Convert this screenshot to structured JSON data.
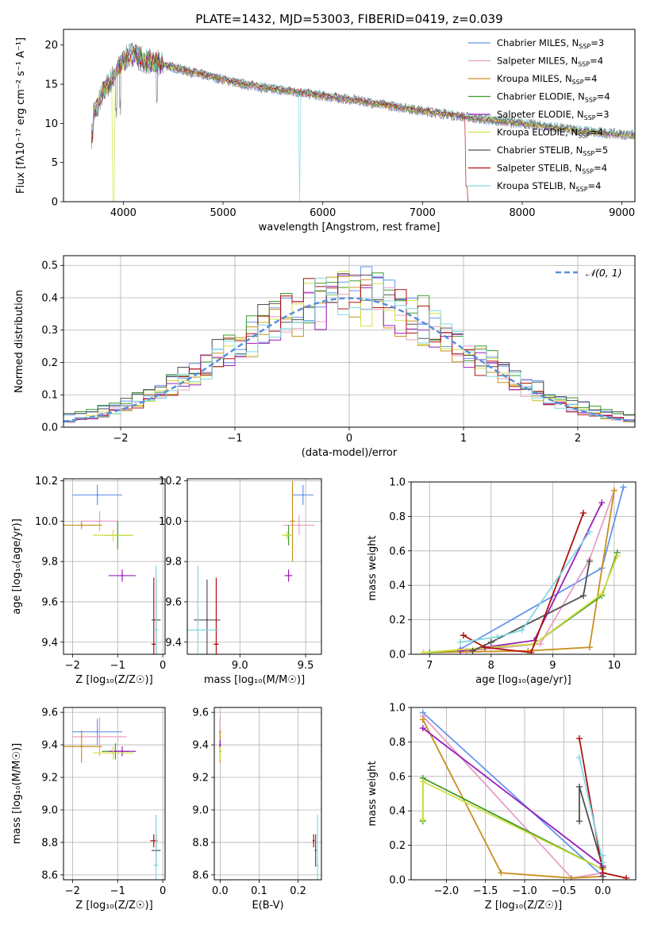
{
  "title": "PLATE=1432, MJD=53003, FIBERID=0419, z=0.039",
  "fits": [
    {
      "name": "Chabrier MILES",
      "nssp": "3",
      "color": "#6495ed"
    },
    {
      "name": "Salpeter MILES",
      "nssp": "4",
      "color": "#e8a0c8"
    },
    {
      "name": "Kroupa MILES",
      "nssp": "4",
      "color": "#c8901e"
    },
    {
      "name": "Chabrier ELODIE",
      "nssp": "4",
      "color": "#3f9a2d"
    },
    {
      "name": "Salpeter ELODIE",
      "nssp": "3",
      "color": "#9a1fb8"
    },
    {
      "name": "Kroupa ELODIE",
      "nssp": "4",
      "color": "#d4e040"
    },
    {
      "name": "Chabrier STELIB",
      "nssp": "5",
      "color": "#505050"
    },
    {
      "name": "Salpeter STELIB",
      "nssp": "4",
      "color": "#b01010"
    },
    {
      "name": "Kroupa STELIB",
      "nssp": "4",
      "color": "#80d8e0"
    }
  ],
  "chart_data": [
    {
      "id": "spectrum",
      "type": "line",
      "title": "PLATE=1432, MJD=53003, FIBERID=0419, z=0.039",
      "xlabel": "wavelength [Angstrom, rest frame]",
      "ylabel": "Flux [fλ10⁻¹⁷ erg cm⁻² s⁻¹ A⁻¹]",
      "xlim": [
        3400,
        9130
      ],
      "ylim": [
        0,
        22
      ],
      "xticks": [
        4000,
        5000,
        6000,
        7000,
        8000,
        9000
      ],
      "yticks": [
        0,
        5,
        10,
        15,
        20
      ],
      "grid": false,
      "legend": "top-right",
      "data": {
        "x": [
          3700,
          3800,
          3900,
          4000,
          4100,
          4200,
          4400,
          4600,
          4800,
          5000,
          5200,
          5500,
          5800,
          6000,
          6300,
          6600,
          7000,
          7500,
          8000,
          8500,
          8800,
          9100
        ],
        "y": [
          11,
          14,
          16,
          18,
          19,
          18,
          17.5,
          16.8,
          16.2,
          15.6,
          15.0,
          14.4,
          13.9,
          13.5,
          13.0,
          12.4,
          11.6,
          10.7,
          10.0,
          9.2,
          8.8,
          8.5
        ]
      }
    },
    {
      "id": "residuals",
      "type": "line",
      "xlabel": "(data-model)/error",
      "ylabel": "Normed distribution",
      "xlim": [
        -2.5,
        2.5
      ],
      "ylim": [
        0,
        0.53
      ],
      "xticks": [
        -2,
        -1,
        0,
        1,
        2
      ],
      "yticks": [
        0.0,
        0.1,
        0.2,
        0.3,
        0.4,
        0.5
      ],
      "grid": true,
      "legend": "top-right",
      "reference": {
        "name": "𝒩(0, 1)",
        "mu": 0,
        "sigma": 1,
        "color": "#5590dd"
      }
    },
    {
      "id": "age-Z",
      "type": "scatter",
      "xlabel": "Z [log₁₀(Z/Z☉)]",
      "ylabel": "age  [log₁₀(age/yr)]",
      "xlim": [
        -2.2,
        0.05
      ],
      "ylim": [
        9.34,
        10.21
      ],
      "xticks": [
        -2,
        -1,
        0
      ],
      "yticks": [
        9.4,
        9.6,
        9.8,
        10.0,
        10.2
      ],
      "grid": true,
      "points": [
        {
          "fit": 0,
          "x": -1.45,
          "y": 10.13,
          "xerr": 0.55,
          "yerr": 0.05
        },
        {
          "fit": 1,
          "x": -1.4,
          "y": 10.0,
          "xerr": 0.4,
          "yerr": 0.05
        },
        {
          "fit": 2,
          "x": -1.8,
          "y": 9.98,
          "xerr": 0.45,
          "yerr": 0.02
        },
        {
          "fit": 3,
          "x": -1.0,
          "y": 9.93,
          "xerr": 0.3,
          "yerr": 0.07
        },
        {
          "fit": 4,
          "x": -0.9,
          "y": 9.73,
          "xerr": 0.3,
          "yerr": 0.03
        },
        {
          "fit": 5,
          "x": -1.1,
          "y": 9.93,
          "xerr": 0.45,
          "yerr": 0.03
        },
        {
          "fit": 6,
          "x": -0.15,
          "y": 9.51,
          "xerr": 0.1,
          "yerr": 0.2
        },
        {
          "fit": 7,
          "x": -0.2,
          "y": 9.39,
          "xerr": 0.05,
          "yerr": 0.33
        },
        {
          "fit": 8,
          "x": -0.15,
          "y": 9.46,
          "xerr": 0.05,
          "yerr": 0.32
        }
      ]
    },
    {
      "id": "age-mass",
      "type": "scatter",
      "xlabel": "mass [log₁₀(M/M☉)]",
      "ylabel": "",
      "xlim": [
        8.6,
        9.62
      ],
      "ylim": [
        9.34,
        10.21
      ],
      "xticks": [
        9.0,
        9.5
      ],
      "yticks": [
        9.4,
        9.6,
        9.8,
        10.0,
        10.2
      ],
      "grid": true,
      "points": [
        {
          "fit": 0,
          "x": 9.48,
          "y": 10.13,
          "xerr": 0.08,
          "yerr": 0.05
        },
        {
          "fit": 1,
          "x": 9.45,
          "y": 9.98,
          "xerr": 0.12,
          "yerr": 0.05
        },
        {
          "fit": 2,
          "x": 9.4,
          "y": 10.0,
          "xerr": 0.02,
          "yerr": 0.2
        },
        {
          "fit": 3,
          "x": 9.37,
          "y": 9.93,
          "xerr": 0.03,
          "yerr": 0.05
        },
        {
          "fit": 4,
          "x": 9.37,
          "y": 9.73,
          "xerr": 0.03,
          "yerr": 0.03
        },
        {
          "fit": 5,
          "x": 9.36,
          "y": 9.93,
          "xerr": 0.04,
          "yerr": 0.02
        },
        {
          "fit": 6,
          "x": 8.75,
          "y": 9.51,
          "xerr": 0.1,
          "yerr": 0.2
        },
        {
          "fit": 7,
          "x": 8.82,
          "y": 9.39,
          "xerr": 0.02,
          "yerr": 0.33
        },
        {
          "fit": 8,
          "x": 8.68,
          "y": 9.46,
          "xerr": 0.16,
          "yerr": 0.32
        }
      ]
    },
    {
      "id": "massweight-age",
      "type": "line",
      "xlabel": "age  [log₁₀(age/yr)]",
      "ylabel": "mass weight",
      "xlim": [
        6.7,
        10.35
      ],
      "ylim": [
        0,
        1
      ],
      "xticks": [
        7,
        8,
        9,
        10
      ],
      "yticks": [
        0.0,
        0.2,
        0.4,
        0.6,
        0.8,
        1.0
      ],
      "grid": true,
      "series": [
        {
          "fit": 0,
          "x": [
            7.5,
            9.8,
            10.15
          ],
          "y": [
            0.03,
            0.5,
            0.97
          ]
        },
        {
          "fit": 1,
          "x": [
            7.6,
            8.8,
            9.6,
            10.0
          ],
          "y": [
            0.02,
            0.06,
            0.55,
            0.95
          ]
        },
        {
          "fit": 2,
          "x": [
            6.9,
            8.6,
            9.6,
            10.0
          ],
          "y": [
            0.01,
            0.02,
            0.04,
            0.95
          ]
        },
        {
          "fit": 3,
          "x": [
            7.0,
            8.7,
            9.8,
            10.05
          ],
          "y": [
            0.01,
            0.06,
            0.34,
            0.59
          ]
        },
        {
          "fit": 4,
          "x": [
            7.5,
            8.7,
            9.8
          ],
          "y": [
            0.02,
            0.08,
            0.88
          ]
        },
        {
          "fit": 5,
          "x": [
            6.9,
            8.7,
            9.8,
            10.05
          ],
          "y": [
            0.01,
            0.06,
            0.35,
            0.57
          ]
        },
        {
          "fit": 6,
          "x": [
            7.7,
            8.0,
            9.5,
            9.6
          ],
          "y": [
            0.02,
            0.07,
            0.34,
            0.54
          ]
        },
        {
          "fit": 7,
          "x": [
            7.55,
            7.9,
            8.65,
            9.5
          ],
          "y": [
            0.11,
            0.04,
            0.01,
            0.82
          ]
        },
        {
          "fit": 8,
          "x": [
            7.5,
            8.1,
            8.5,
            9.6
          ],
          "y": [
            0.07,
            0.1,
            0.14,
            0.71
          ]
        }
      ]
    },
    {
      "id": "mass-Z",
      "type": "scatter",
      "xlabel": "Z [log₁₀(Z/Z☉)]",
      "ylabel": "mass [log₁₀(M/M☉)]",
      "xlim": [
        -2.2,
        0.05
      ],
      "ylim": [
        8.57,
        9.63
      ],
      "xticks": [
        -2,
        -1,
        0
      ],
      "yticks": [
        8.6,
        8.8,
        9.0,
        9.2,
        9.4,
        9.6
      ],
      "grid": true,
      "points": [
        {
          "fit": 0,
          "x": -1.45,
          "y": 9.48,
          "xerr": 0.55,
          "yerr": 0.08
        },
        {
          "fit": 1,
          "x": -1.4,
          "y": 9.45,
          "xerr": 0.6,
          "yerr": 0.12
        },
        {
          "fit": 2,
          "x": -1.8,
          "y": 9.39,
          "xerr": 0.45,
          "yerr": 0.1
        },
        {
          "fit": 3,
          "x": -1.05,
          "y": 9.36,
          "xerr": 0.3,
          "yerr": 0.05
        },
        {
          "fit": 4,
          "x": -0.9,
          "y": 9.36,
          "xerr": 0.3,
          "yerr": 0.03
        },
        {
          "fit": 5,
          "x": -1.1,
          "y": 9.35,
          "xerr": 0.45,
          "yerr": 0.04
        },
        {
          "fit": 6,
          "x": -0.15,
          "y": 8.75,
          "xerr": 0.1,
          "yerr": 0.1
        },
        {
          "fit": 7,
          "x": -0.2,
          "y": 8.81,
          "xerr": 0.08,
          "yerr": 0.04
        },
        {
          "fit": 8,
          "x": -0.15,
          "y": 8.66,
          "xerr": 0.05,
          "yerr": 0.31
        }
      ]
    },
    {
      "id": "mass-ebv",
      "type": "scatter",
      "xlabel": "E(B-V)",
      "ylabel": "",
      "xlim": [
        -0.015,
        0.26
      ],
      "ylim": [
        8.57,
        9.63
      ],
      "xticks": [
        0.0,
        0.1,
        0.2
      ],
      "yticks": [
        8.6,
        8.8,
        9.0,
        9.2,
        9.4,
        9.6
      ],
      "grid": true,
      "points": [
        {
          "fit": 0,
          "x": 0.0,
          "y": 9.48,
          "xerr": 0,
          "yerr": 0.08
        },
        {
          "fit": 1,
          "x": 0.0,
          "y": 9.45,
          "xerr": 0,
          "yerr": 0.12
        },
        {
          "fit": 2,
          "x": 0.0,
          "y": 9.39,
          "xerr": 0,
          "yerr": 0.1
        },
        {
          "fit": 3,
          "x": 0.0,
          "y": 9.36,
          "xerr": 0,
          "yerr": 0.05
        },
        {
          "fit": 4,
          "x": 0.0,
          "y": 9.4,
          "xerr": 0,
          "yerr": 0.03
        },
        {
          "fit": 5,
          "x": 0.0,
          "y": 9.35,
          "xerr": 0,
          "yerr": 0.04
        },
        {
          "fit": 6,
          "x": 0.245,
          "y": 8.75,
          "xerr": 0,
          "yerr": 0.1
        },
        {
          "fit": 7,
          "x": 0.24,
          "y": 8.81,
          "xerr": 0,
          "yerr": 0.04
        },
        {
          "fit": 8,
          "x": 0.25,
          "y": 8.66,
          "xerr": 0,
          "yerr": 0.31
        }
      ]
    },
    {
      "id": "massweight-Z",
      "type": "line",
      "xlabel": "Z [log₁₀(Z/Z☉)]",
      "ylabel": "mass weight",
      "xlim": [
        -2.45,
        0.42
      ],
      "ylim": [
        0,
        1
      ],
      "xticks": [
        -2.0,
        -1.5,
        -1.0,
        -0.5,
        0.0
      ],
      "yticks": [
        0.0,
        0.2,
        0.4,
        0.6,
        0.8,
        1.0
      ],
      "grid": true,
      "series": [
        {
          "fit": 0,
          "x": [
            -2.3,
            0.0
          ],
          "y": [
            0.97,
            0.02
          ]
        },
        {
          "fit": 1,
          "x": [
            -2.3,
            -0.4,
            0.0
          ],
          "y": [
            0.95,
            0.01,
            0.04
          ]
        },
        {
          "fit": 2,
          "x": [
            -2.3,
            -1.3,
            -0.4,
            0.0
          ],
          "y": [
            0.93,
            0.04,
            0.01,
            0.02
          ]
        },
        {
          "fit": 3,
          "x": [
            -2.3,
            -2.3,
            0.0
          ],
          "y": [
            0.34,
            0.59,
            0.06
          ]
        },
        {
          "fit": 4,
          "x": [
            -2.3,
            0.0,
            0.0
          ],
          "y": [
            0.88,
            0.08,
            0.02
          ]
        },
        {
          "fit": 5,
          "x": [
            -2.3,
            -2.3,
            0.0
          ],
          "y": [
            0.35,
            0.57,
            0.06
          ]
        },
        {
          "fit": 6,
          "x": [
            -0.3,
            -0.3,
            0.0,
            0.0
          ],
          "y": [
            0.34,
            0.54,
            0.07,
            0.02
          ]
        },
        {
          "fit": 7,
          "x": [
            -0.3,
            0.0,
            0.3
          ],
          "y": [
            0.82,
            0.04,
            0.01
          ]
        },
        {
          "fit": 8,
          "x": [
            -0.3,
            0.0,
            0.0
          ],
          "y": [
            0.71,
            0.1,
            0.14
          ]
        }
      ]
    }
  ]
}
